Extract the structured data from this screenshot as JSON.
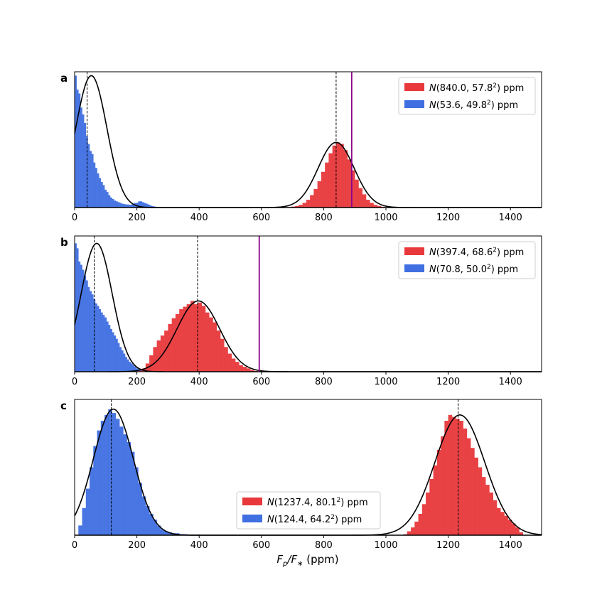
{
  "figure": {
    "xlabel_main": "F",
    "xlabel_sub1": "p",
    "xlabel_sep": "/F",
    "xlabel_sub2": "∗",
    "xlabel_unit": " (ppm)"
  },
  "chart_data": [
    {
      "type": "bar",
      "panel_label": "a",
      "xlim": [
        0,
        1500
      ],
      "xticks": [
        "0",
        "200",
        "400",
        "600",
        "800",
        "1000",
        "1200",
        "1400"
      ],
      "legend_position": "upper right",
      "grid": false,
      "vertical_lines": [
        {
          "x": 40,
          "style": "dashed",
          "color": "#000000"
        },
        {
          "x": 840,
          "style": "dashed",
          "color": "#000000"
        },
        {
          "x": 890,
          "style": "solid",
          "color": "#8b008b"
        }
      ],
      "series": [
        {
          "name": "N(840.0, 57.8²) ppm",
          "name_main": "N",
          "name_args": "(840.0, 57.8",
          "name_tail": ") ppm",
          "color": "#e8383b",
          "mean": 840.0,
          "sigma": 57.8,
          "histogram": {
            "bin_width": 12,
            "bins": [
              [
                684,
                0.6
              ],
              [
                696,
                1.2
              ],
              [
                708,
                2
              ],
              [
                720,
                3.5
              ],
              [
                732,
                6
              ],
              [
                744,
                10
              ],
              [
                756,
                16
              ],
              [
                768,
                24
              ],
              [
                780,
                34
              ],
              [
                792,
                46
              ],
              [
                804,
                58
              ],
              [
                816,
                70
              ],
              [
                828,
                80
              ],
              [
                840,
                84
              ],
              [
                852,
                82
              ],
              [
                864,
                74
              ],
              [
                876,
                62
              ],
              [
                888,
                48
              ],
              [
                900,
                36
              ],
              [
                912,
                25
              ],
              [
                924,
                17
              ],
              [
                936,
                10
              ],
              [
                948,
                6
              ],
              [
                960,
                3.5
              ],
              [
                972,
                2
              ],
              [
                984,
                1
              ],
              [
                996,
                0.5
              ]
            ]
          }
        },
        {
          "name": "N(53.6, 49.8²) ppm",
          "name_main": "N",
          "name_args": "(53.6, 49.8",
          "name_tail": ") ppm",
          "color": "#3f6fe0",
          "mean": 53.6,
          "sigma": 49.8,
          "histogram": {
            "bin_width": 6,
            "bins": [
              [
                0,
                170
              ],
              [
                6,
                152
              ],
              [
                12,
                147
              ],
              [
                18,
                129
              ],
              [
                24,
                120
              ],
              [
                30,
                109
              ],
              [
                36,
                92
              ],
              [
                42,
                82
              ],
              [
                48,
                73
              ],
              [
                54,
                69
              ],
              [
                60,
                58
              ],
              [
                66,
                51
              ],
              [
                72,
                44
              ],
              [
                78,
                38
              ],
              [
                84,
                33
              ],
              [
                90,
                29
              ],
              [
                96,
                23
              ],
              [
                102,
                20
              ],
              [
                108,
                16
              ],
              [
                114,
                13
              ],
              [
                120,
                11
              ],
              [
                126,
                9
              ],
              [
                132,
                8
              ],
              [
                138,
                7
              ],
              [
                144,
                6
              ],
              [
                150,
                5
              ],
              [
                156,
                4.5
              ],
              [
                162,
                4
              ],
              [
                168,
                4
              ],
              [
                174,
                3.5
              ],
              [
                180,
                4
              ],
              [
                186,
                5
              ],
              [
                192,
                6
              ],
              [
                198,
                6
              ],
              [
                204,
                8
              ],
              [
                210,
                8
              ],
              [
                216,
                7
              ],
              [
                222,
                6
              ],
              [
                228,
                5
              ],
              [
                234,
                4
              ],
              [
                240,
                3
              ],
              [
                246,
                2
              ],
              [
                252,
                1.5
              ],
              [
                258,
                1
              ],
              [
                264,
                0.5
              ]
            ]
          }
        }
      ]
    },
    {
      "type": "bar",
      "panel_label": "b",
      "xlim": [
        0,
        1500
      ],
      "xticks": [
        "0",
        "200",
        "400",
        "600",
        "800",
        "1000",
        "1200",
        "1400"
      ],
      "legend_position": "upper right",
      "grid": false,
      "vertical_lines": [
        {
          "x": 63,
          "style": "dashed",
          "color": "#000000"
        },
        {
          "x": 395,
          "style": "dashed",
          "color": "#000000"
        },
        {
          "x": 593,
          "style": "solid",
          "color": "#8b008b"
        }
      ],
      "series": [
        {
          "name": "N(397.4, 68.6²) ppm",
          "name_main": "N",
          "name_args": "(397.4, 68.6",
          "name_tail": ") ppm",
          "color": "#e8383b",
          "mean": 397.4,
          "sigma": 68.6,
          "histogram": {
            "bin_width": 12,
            "bins": [
              [
                204,
                1
              ],
              [
                216,
                4
              ],
              [
                228,
                10
              ],
              [
                240,
                20
              ],
              [
                252,
                30
              ],
              [
                264,
                38
              ],
              [
                276,
                44
              ],
              [
                288,
                50
              ],
              [
                300,
                58
              ],
              [
                312,
                65
              ],
              [
                324,
                70
              ],
              [
                336,
                76
              ],
              [
                348,
                79
              ],
              [
                360,
                82
              ],
              [
                372,
                86
              ],
              [
                384,
                82
              ],
              [
                396,
                84
              ],
              [
                408,
                80
              ],
              [
                420,
                72
              ],
              [
                432,
                66
              ],
              [
                444,
                60
              ],
              [
                456,
                50
              ],
              [
                468,
                40
              ],
              [
                480,
                30
              ],
              [
                492,
                22
              ],
              [
                504,
                16
              ],
              [
                516,
                12
              ],
              [
                528,
                8
              ],
              [
                540,
                6
              ],
              [
                552,
                4
              ],
              [
                564,
                2
              ],
              [
                576,
                1
              ]
            ]
          }
        },
        {
          "name": "N(70.8, 50.0²) ppm",
          "name_main": "N",
          "name_args": "(70.8, 50.0",
          "name_tail": ") ppm",
          "color": "#3f6fe0",
          "mean": 70.8,
          "sigma": 50.0,
          "histogram": {
            "bin_width": 6,
            "bins": [
              [
                0,
                156
              ],
              [
                6,
                150
              ],
              [
                12,
                134
              ],
              [
                18,
                130
              ],
              [
                24,
                124
              ],
              [
                30,
                117
              ],
              [
                36,
                111
              ],
              [
                42,
                103
              ],
              [
                48,
                98
              ],
              [
                54,
                94
              ],
              [
                60,
                88
              ],
              [
                66,
                83
              ],
              [
                72,
                80
              ],
              [
                78,
                76
              ],
              [
                84,
                72
              ],
              [
                90,
                69
              ],
              [
                96,
                66
              ],
              [
                102,
                61
              ],
              [
                108,
                57
              ],
              [
                114,
                52
              ],
              [
                120,
                48
              ],
              [
                126,
                44
              ],
              [
                132,
                40
              ],
              [
                138,
                35
              ],
              [
                144,
                30
              ],
              [
                150,
                26
              ],
              [
                156,
                22
              ],
              [
                162,
                18
              ],
              [
                168,
                15
              ],
              [
                174,
                12
              ],
              [
                180,
                10
              ],
              [
                186,
                8
              ],
              [
                192,
                6
              ],
              [
                198,
                4
              ],
              [
                204,
                3
              ],
              [
                210,
                2
              ],
              [
                216,
                1
              ]
            ]
          }
        }
      ]
    },
    {
      "type": "bar",
      "panel_label": "c",
      "xlim": [
        0,
        1500
      ],
      "xticks": [
        "0",
        "200",
        "400",
        "600",
        "800",
        "1000",
        "1200",
        "1400"
      ],
      "legend_position": "lower center",
      "grid": false,
      "vertical_lines": [
        {
          "x": 118,
          "style": "dashed",
          "color": "#000000"
        },
        {
          "x": 1232,
          "style": "dashed",
          "color": "#000000"
        }
      ],
      "series": [
        {
          "name": "N(1237.4, 80.1²) ppm",
          "name_main": "N",
          "name_args": "(1237.4, 80.1",
          "name_tail": ") ppm",
          "color": "#e8383b",
          "mean": 1237.4,
          "sigma": 80.1,
          "histogram": {
            "bin_width": 12,
            "bins": [
              [
                1056,
                1
              ],
              [
                1068,
                4
              ],
              [
                1080,
                8
              ],
              [
                1092,
                14
              ],
              [
                1104,
                22
              ],
              [
                1116,
                32
              ],
              [
                1128,
                44
              ],
              [
                1140,
                58
              ],
              [
                1152,
                72
              ],
              [
                1164,
                88
              ],
              [
                1176,
                102
              ],
              [
                1188,
                118
              ],
              [
                1200,
                124
              ],
              [
                1212,
                122
              ],
              [
                1224,
                120
              ],
              [
                1236,
                118
              ],
              [
                1248,
                110
              ],
              [
                1260,
                100
              ],
              [
                1272,
                90
              ],
              [
                1284,
                80
              ],
              [
                1296,
                70
              ],
              [
                1308,
                60
              ],
              [
                1320,
                52
              ],
              [
                1332,
                44
              ],
              [
                1344,
                36
              ],
              [
                1356,
                28
              ],
              [
                1368,
                24
              ],
              [
                1380,
                20
              ],
              [
                1392,
                16
              ],
              [
                1404,
                12
              ],
              [
                1416,
                8
              ],
              [
                1428,
                3
              ]
            ]
          }
        },
        {
          "name": "N(124.4, 64.2²) ppm",
          "name_main": "N",
          "name_args": "(124.4, 64.2",
          "name_tail": ") ppm",
          "color": "#3f6fe0",
          "mean": 124.4,
          "sigma": 64.2,
          "histogram": {
            "bin_width": 12,
            "bins": [
              [
                12,
                10
              ],
              [
                24,
                28
              ],
              [
                36,
                48
              ],
              [
                48,
                70
              ],
              [
                60,
                92
              ],
              [
                72,
                108
              ],
              [
                84,
                118
              ],
              [
                96,
                124
              ],
              [
                108,
                130
              ],
              [
                120,
                126
              ],
              [
                132,
                120
              ],
              [
                144,
                112
              ],
              [
                156,
                104
              ],
              [
                168,
                96
              ],
              [
                180,
                86
              ],
              [
                192,
                70
              ],
              [
                204,
                54
              ],
              [
                216,
                40
              ],
              [
                228,
                30
              ],
              [
                240,
                22
              ],
              [
                252,
                16
              ],
              [
                264,
                10
              ],
              [
                276,
                6
              ],
              [
                288,
                4
              ],
              [
                300,
                3
              ],
              [
                312,
                2
              ],
              [
                324,
                2
              ],
              [
                336,
                1
              ],
              [
                348,
                1
              ]
            ]
          }
        }
      ]
    }
  ]
}
